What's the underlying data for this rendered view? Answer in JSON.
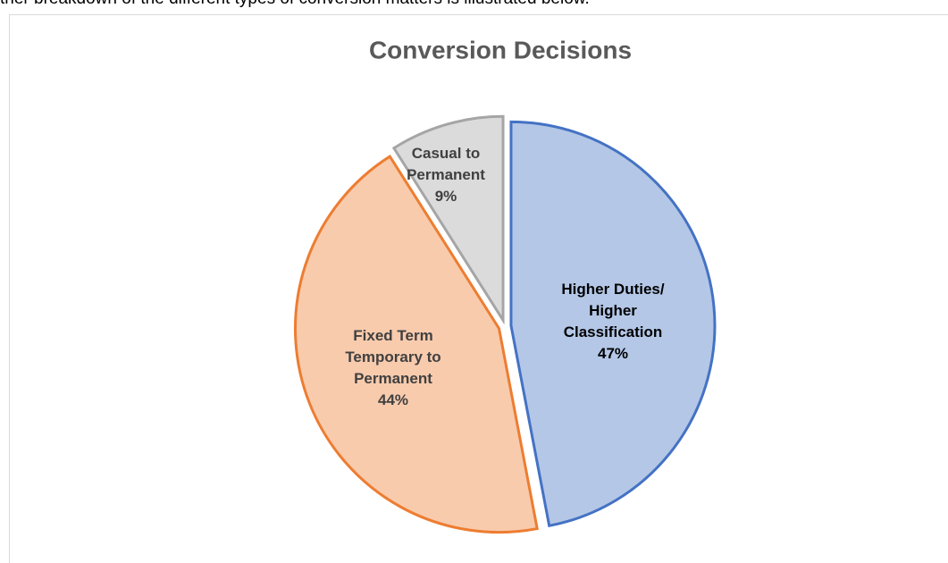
{
  "intro_text": "ther breakdown of the different types of conversion matters is illustrated below.",
  "chart_data": {
    "type": "pie",
    "title": "Conversion Decisions",
    "categories": [
      "Higher Duties/ Higher Classification",
      "Fixed Term Temporary to Permanent",
      "Casual to Permanent"
    ],
    "values": [
      47,
      44,
      9
    ],
    "value_labels": [
      "47%",
      "44%",
      "9%"
    ],
    "colors": [
      "#b4c7e7",
      "#f8cbad",
      "#dbdbdb"
    ],
    "edge_colors": [
      "#4472c4",
      "#ed7d31",
      "#a5a5a5"
    ]
  }
}
